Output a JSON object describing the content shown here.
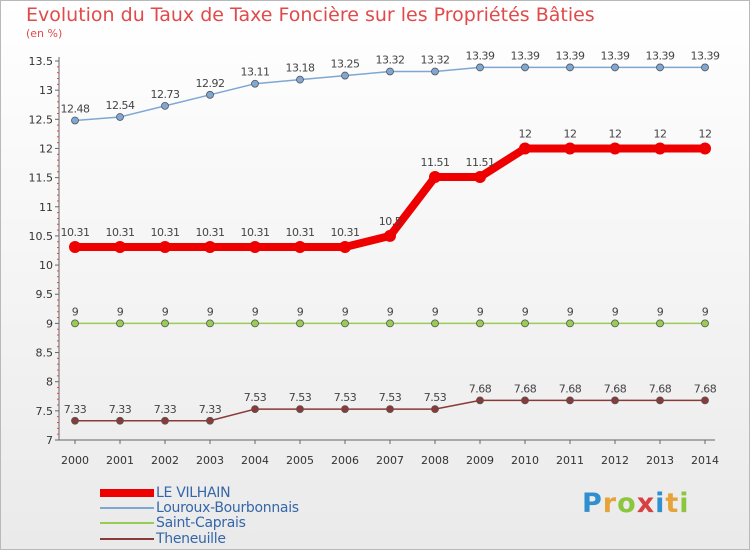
{
  "title": "Evolution du Taux de Taxe Foncière sur les Propriétés Bâties",
  "unit_label": "(en %)",
  "logo": {
    "text": "Proxiti",
    "letters": [
      "P",
      "r",
      "o",
      "x",
      "i",
      "t",
      "i"
    ],
    "colors": [
      "#2f8fd0",
      "#e6a33a",
      "#8cc63f",
      "#d94040",
      "#2f8fd0",
      "#e6a33a",
      "#8cc63f"
    ]
  },
  "chart_data": {
    "type": "line",
    "title": "Evolution du Taux de Taxe Foncière sur les Propriétés Bâties",
    "ylabel": "(en %)",
    "xlabel": "",
    "x": [
      "2000",
      "2001",
      "2002",
      "2003",
      "2004",
      "2005",
      "2006",
      "2007",
      "2008",
      "2009",
      "2010",
      "2011",
      "2012",
      "2013",
      "2014"
    ],
    "ylim": [
      7,
      13.5
    ],
    "yticks": [
      "7",
      "7.5",
      "8",
      "8.5",
      "9",
      "9.5",
      "10",
      "10.5",
      "11",
      "11.5",
      "12",
      "12.5",
      "13",
      "13.5"
    ],
    "grid": false,
    "legend_position": "bottom-left",
    "series": [
      {
        "name": "LE VILHAIN",
        "color": "#ee0000",
        "emphasis": true,
        "values": [
          10.31,
          10.31,
          10.31,
          10.31,
          10.31,
          10.31,
          10.31,
          10.5,
          11.51,
          11.51,
          12,
          12,
          12,
          12,
          12
        ],
        "labels": [
          "10.31",
          "10.31",
          "10.31",
          "10.31",
          "10.31",
          "10.31",
          "10.31",
          "10.5",
          "11.51",
          "11.51",
          "12",
          "12",
          "12",
          "12",
          "12"
        ]
      },
      {
        "name": "Louroux-Bourbonnais",
        "color": "#7fa7d4",
        "emphasis": false,
        "values": [
          12.48,
          12.54,
          12.73,
          12.92,
          13.11,
          13.18,
          13.25,
          13.32,
          13.32,
          13.39,
          13.39,
          13.39,
          13.39,
          13.39,
          13.39
        ],
        "labels": [
          "12.48",
          "12.54",
          "12.73",
          "12.92",
          "13.11",
          "13.18",
          "13.25",
          "13.32",
          "13.32",
          "13.39",
          "13.39",
          "13.39",
          "13.39",
          "13.39",
          "13.39"
        ]
      },
      {
        "name": "Saint-Caprais",
        "color": "#99cc55",
        "emphasis": false,
        "values": [
          9,
          9,
          9,
          9,
          9,
          9,
          9,
          9,
          9,
          9,
          9,
          9,
          9,
          9,
          9
        ],
        "labels": [
          "9",
          "9",
          "9",
          "9",
          "9",
          "9",
          "9",
          "9",
          "9",
          "9",
          "9",
          "9",
          "9",
          "9",
          "9"
        ]
      },
      {
        "name": "Theneuille",
        "color": "#8b3a3a",
        "emphasis": false,
        "values": [
          7.33,
          7.33,
          7.33,
          7.33,
          7.53,
          7.53,
          7.53,
          7.53,
          7.53,
          7.68,
          7.68,
          7.68,
          7.68,
          7.68,
          7.68
        ],
        "labels": [
          "7.33",
          "7.33",
          "7.33",
          "7.33",
          "7.53",
          "7.53",
          "7.53",
          "7.53",
          "7.53",
          "7.68",
          "7.68",
          "7.68",
          "7.68",
          "7.68",
          "7.68"
        ]
      }
    ]
  }
}
